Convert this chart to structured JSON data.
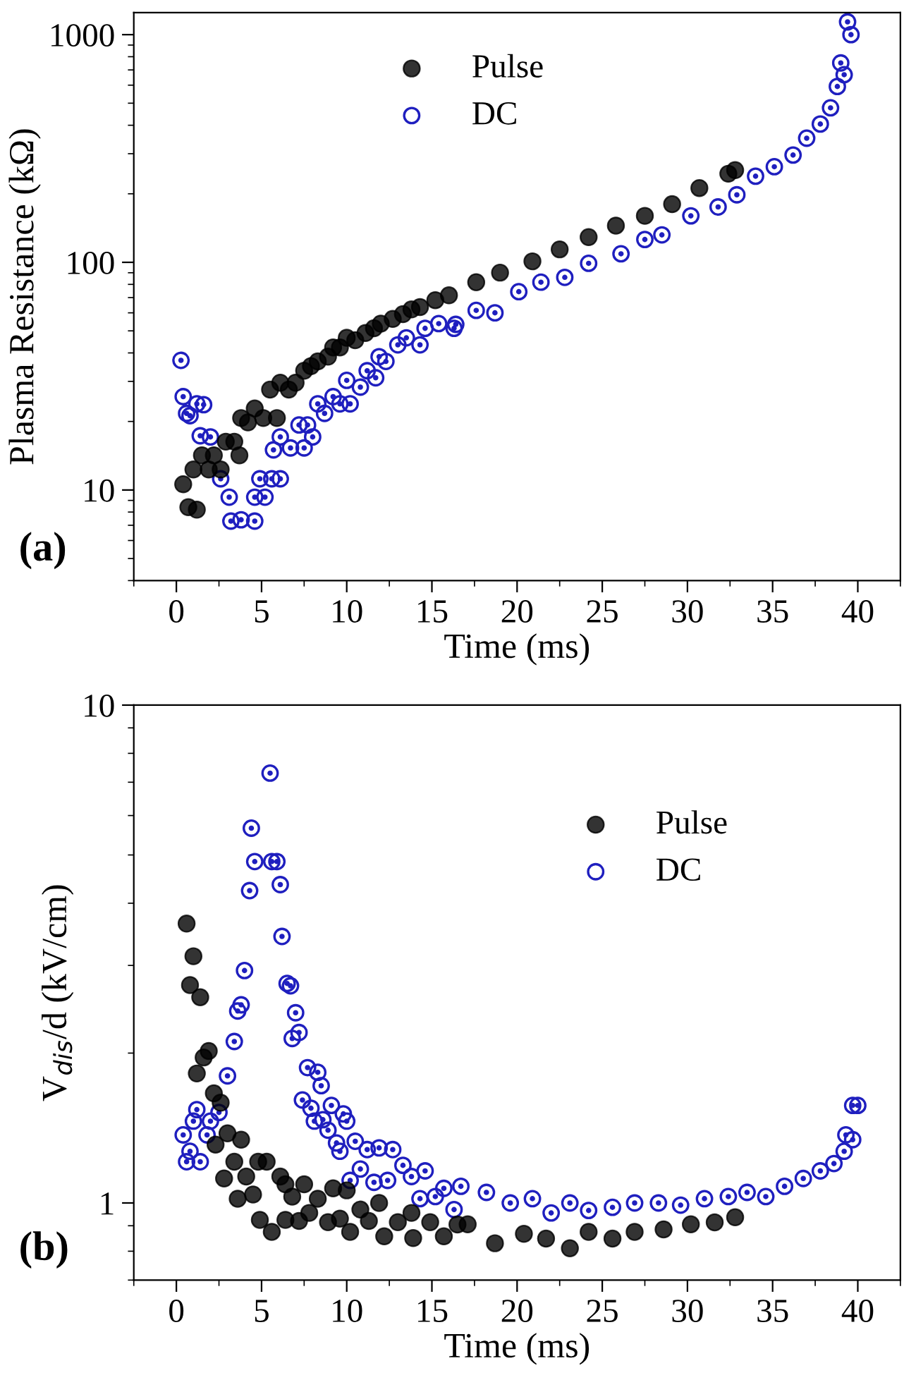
{
  "chart_data": [
    {
      "type": "scatter",
      "xlabel": "Time (ms)",
      "ylabel": "Plasma Resistance (kΩ)",
      "annotations": [
        "(a)"
      ],
      "log": "y",
      "xlim": [
        -2.5,
        42.5
      ],
      "ylim": [
        4,
        1250
      ],
      "xticks": [
        0,
        5,
        10,
        15,
        20,
        25,
        30,
        35,
        40
      ],
      "yticks": [
        10,
        100,
        1000
      ],
      "marker": "circle",
      "legend": "top left",
      "grid": false,
      "series": [
        {
          "name": "Pulse",
          "color": "#000000",
          "x": [
            0.4,
            0.7,
            1.2,
            1.0,
            1.5,
            1.9,
            2.2,
            2.6,
            2.9,
            3.4,
            3.7,
            3.8,
            4.2,
            4.6,
            5.1,
            5.5,
            5.9,
            6.1,
            6.6,
            7.0,
            7.5,
            7.9,
            8.3,
            8.9,
            9.2,
            9.6,
            10.0,
            10.5,
            11.1,
            11.6,
            12.0,
            12.7,
            13.3,
            13.8,
            14.3,
            15.2,
            16.0,
            17.6,
            19.0,
            20.9,
            22.5,
            24.2,
            25.8,
            27.5,
            29.1,
            30.7,
            32.4,
            32.8
          ],
          "values": [
            10.6,
            8.4,
            8.2,
            12.3,
            14.2,
            12.3,
            14.2,
            12.3,
            16.3,
            16.3,
            14.2,
            20.7,
            19.8,
            22.8,
            20.7,
            27.6,
            20.7,
            29.6,
            27.6,
            29.6,
            33.4,
            35,
            36.7,
            38.5,
            42.3,
            42.3,
            46.6,
            45.5,
            48.9,
            51.3,
            53.8,
            56.4,
            59.2,
            62.1,
            63.6,
            68.2,
            71.6,
            81.8,
            90.1,
            101,
            114,
            129,
            145,
            160,
            180,
            212,
            245,
            254
          ]
        },
        {
          "name": "DC",
          "color": "#1f1fbf",
          "x": [
            0.27,
            0.4,
            0.6,
            0.8,
            1.2,
            1.6,
            1.4,
            2.0,
            2.6,
            3.1,
            3.2,
            3.8,
            4.6,
            4.6,
            4.9,
            5.2,
            5.6,
            6.1,
            5.7,
            6.1,
            6.7,
            7.2,
            7.5,
            7.7,
            8.0,
            8.3,
            8.7,
            9.2,
            9.6,
            10.0,
            10.2,
            10.8,
            11.2,
            11.7,
            11.9,
            12.3,
            13.0,
            13.5,
            14.3,
            14.6,
            15.4,
            16.3,
            16.4,
            17.6,
            18.7,
            20.1,
            21.4,
            22.8,
            24.2,
            26.1,
            27.5,
            28.5,
            30.2,
            31.8,
            32.9,
            34.0,
            35.1,
            36.2,
            37.0,
            37.8,
            38.4,
            38.8,
            39.0,
            39.2,
            39.4,
            39.6
          ],
          "values": [
            37.1,
            25.7,
            21.7,
            21.2,
            23.9,
            23.7,
            17.3,
            17.1,
            11.2,
            9.3,
            7.3,
            7.4,
            7.3,
            9.3,
            11.2,
            9.3,
            11.2,
            11.2,
            15.0,
            17.1,
            15.3,
            19.3,
            15.3,
            19.3,
            17.1,
            23.9,
            21.7,
            25.7,
            23.9,
            30.3,
            23.9,
            28.3,
            33.4,
            31.1,
            38.5,
            36.7,
            43.4,
            46.6,
            43.4,
            51.3,
            53.8,
            51.3,
            53.4,
            61.5,
            60,
            74.3,
            81.8,
            85.9,
            99,
            109,
            126,
            132,
            160,
            175,
            198,
            239,
            263,
            296,
            351,
            405,
            477,
            592,
            751,
            667,
            1138,
            1000
          ]
        }
      ]
    },
    {
      "type": "scatter",
      "xlabel": "Time (ms)",
      "ylabel": "V$_{dis}$/d (kV/cm)",
      "annotations": [
        "(b)"
      ],
      "log": "y",
      "xlim": [
        -2.5,
        42.5
      ],
      "ylim": [
        0.7,
        10
      ],
      "xticks": [
        0,
        5,
        10,
        15,
        20,
        25,
        30,
        35,
        40
      ],
      "yticks": [
        1,
        10
      ],
      "marker": "circle",
      "legend": "right",
      "grid": false,
      "series": [
        {
          "name": "Pulse",
          "color": "#000000",
          "x": [
            0.6,
            1.0,
            0.8,
            1.4,
            1.2,
            1.6,
            1.9,
            2.2,
            2.6,
            2.3,
            3.0,
            2.8,
            3.4,
            3.8,
            3.6,
            4.1,
            4.5,
            4.8,
            5.3,
            4.9,
            5.6,
            6.1,
            6.4,
            6.4,
            6.8,
            7.2,
            7.5,
            7.8,
            8.3,
            8.9,
            9.2,
            9.6,
            10.0,
            10.2,
            10.8,
            11.3,
            11.9,
            12.2,
            13.0,
            13.8,
            13.9,
            14.9,
            15.7,
            16.5,
            17.1,
            18.7,
            20.4,
            21.7,
            23.1,
            24.2,
            25.6,
            26.9,
            28.6,
            30.2,
            31.6,
            32.8
          ],
          "values": [
            3.64,
            3.13,
            2.74,
            2.59,
            1.82,
            1.96,
            2.02,
            1.66,
            1.59,
            1.31,
            1.38,
            1.12,
            1.21,
            1.34,
            1.02,
            1.13,
            1.04,
            1.21,
            1.21,
            0.925,
            0.875,
            1.13,
            1.09,
            0.925,
            1.03,
            0.92,
            1.09,
            0.955,
            1.02,
            0.915,
            1.07,
            0.93,
            1.06,
            0.875,
            0.97,
            0.92,
            1.0,
            0.857,
            0.915,
            0.955,
            0.85,
            0.915,
            0.857,
            0.905,
            0.906,
            0.83,
            0.867,
            0.848,
            0.811,
            0.875,
            0.848,
            0.875,
            0.885,
            0.906,
            0.914,
            0.936
          ]
        },
        {
          "name": "DC",
          "color": "#1f1fbf",
          "x": [
            0.4,
            0.6,
            0.8,
            1.0,
            1.2,
            1.4,
            1.8,
            2.0,
            2.5,
            3.0,
            3.4,
            3.6,
            3.8,
            4.0,
            4.3,
            4.4,
            4.6,
            5.5,
            5.6,
            5.9,
            6.1,
            6.2,
            6.5,
            6.7,
            7.0,
            6.8,
            7.2,
            7.4,
            7.7,
            7.9,
            8.1,
            8.3,
            8.5,
            8.6,
            8.9,
            9.1,
            9.4,
            9.6,
            9.8,
            10.0,
            10.2,
            10.5,
            10.8,
            11.2,
            11.6,
            11.9,
            12.4,
            12.7,
            13.3,
            13.8,
            14.3,
            14.6,
            15.2,
            15.7,
            16.3,
            16.7,
            18.2,
            19.6,
            20.9,
            22.0,
            23.1,
            24.2,
            25.6,
            26.9,
            28.3,
            29.6,
            31.0,
            32.4,
            33.5,
            34.6,
            35.7,
            36.8,
            37.8,
            38.6,
            39.2,
            39.3,
            39.7,
            39.7,
            40.0
          ],
          "values": [
            1.37,
            1.21,
            1.27,
            1.46,
            1.54,
            1.21,
            1.37,
            1.46,
            1.52,
            1.8,
            2.11,
            2.43,
            2.5,
            2.93,
            4.24,
            5.66,
            4.85,
            7.3,
            4.85,
            4.85,
            4.36,
            3.43,
            2.76,
            2.73,
            2.41,
            2.14,
            2.2,
            1.61,
            1.87,
            1.55,
            1.46,
            1.83,
            1.72,
            1.47,
            1.4,
            1.57,
            1.32,
            1.27,
            1.51,
            1.46,
            1.11,
            1.33,
            1.17,
            1.28,
            1.1,
            1.29,
            1.11,
            1.28,
            1.19,
            1.13,
            1.02,
            1.16,
            1.03,
            1.07,
            0.97,
            1.08,
            1.05,
            1.0,
            1.02,
            0.955,
            1.0,
            0.966,
            0.98,
            1.0,
            1.0,
            0.99,
            1.02,
            1.03,
            1.05,
            1.03,
            1.08,
            1.12,
            1.16,
            1.2,
            1.27,
            1.37,
            1.34,
            1.57,
            1.57
          ]
        }
      ]
    }
  ]
}
